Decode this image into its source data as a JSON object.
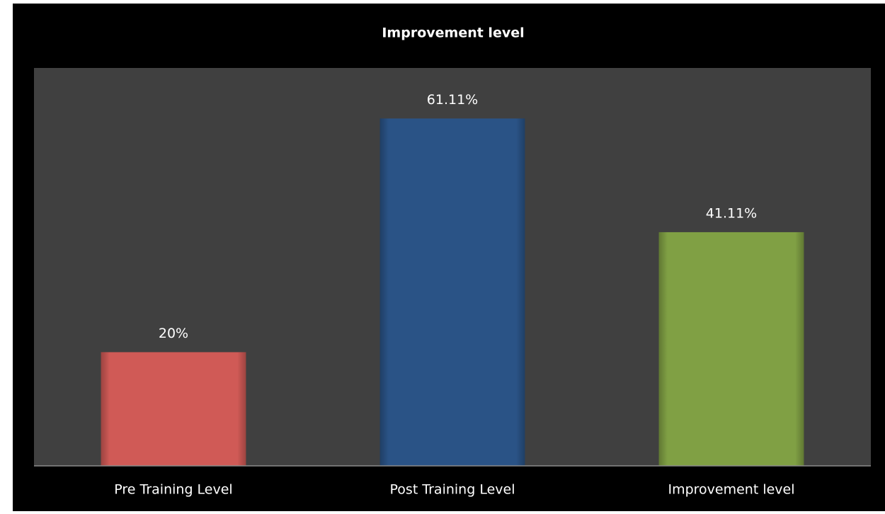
{
  "chart_data": {
    "type": "bar",
    "title": "Improvement level",
    "categories": [
      "Pre Training Level",
      "Post Training Level",
      "Improvement level"
    ],
    "values": [
      20,
      61.11,
      41.11
    ],
    "value_labels": [
      "20%",
      "61.11%",
      "41.11%"
    ],
    "colors": [
      "#d05a56",
      "#2a5386",
      "#80a044"
    ],
    "ylim": [
      0,
      70
    ]
  }
}
